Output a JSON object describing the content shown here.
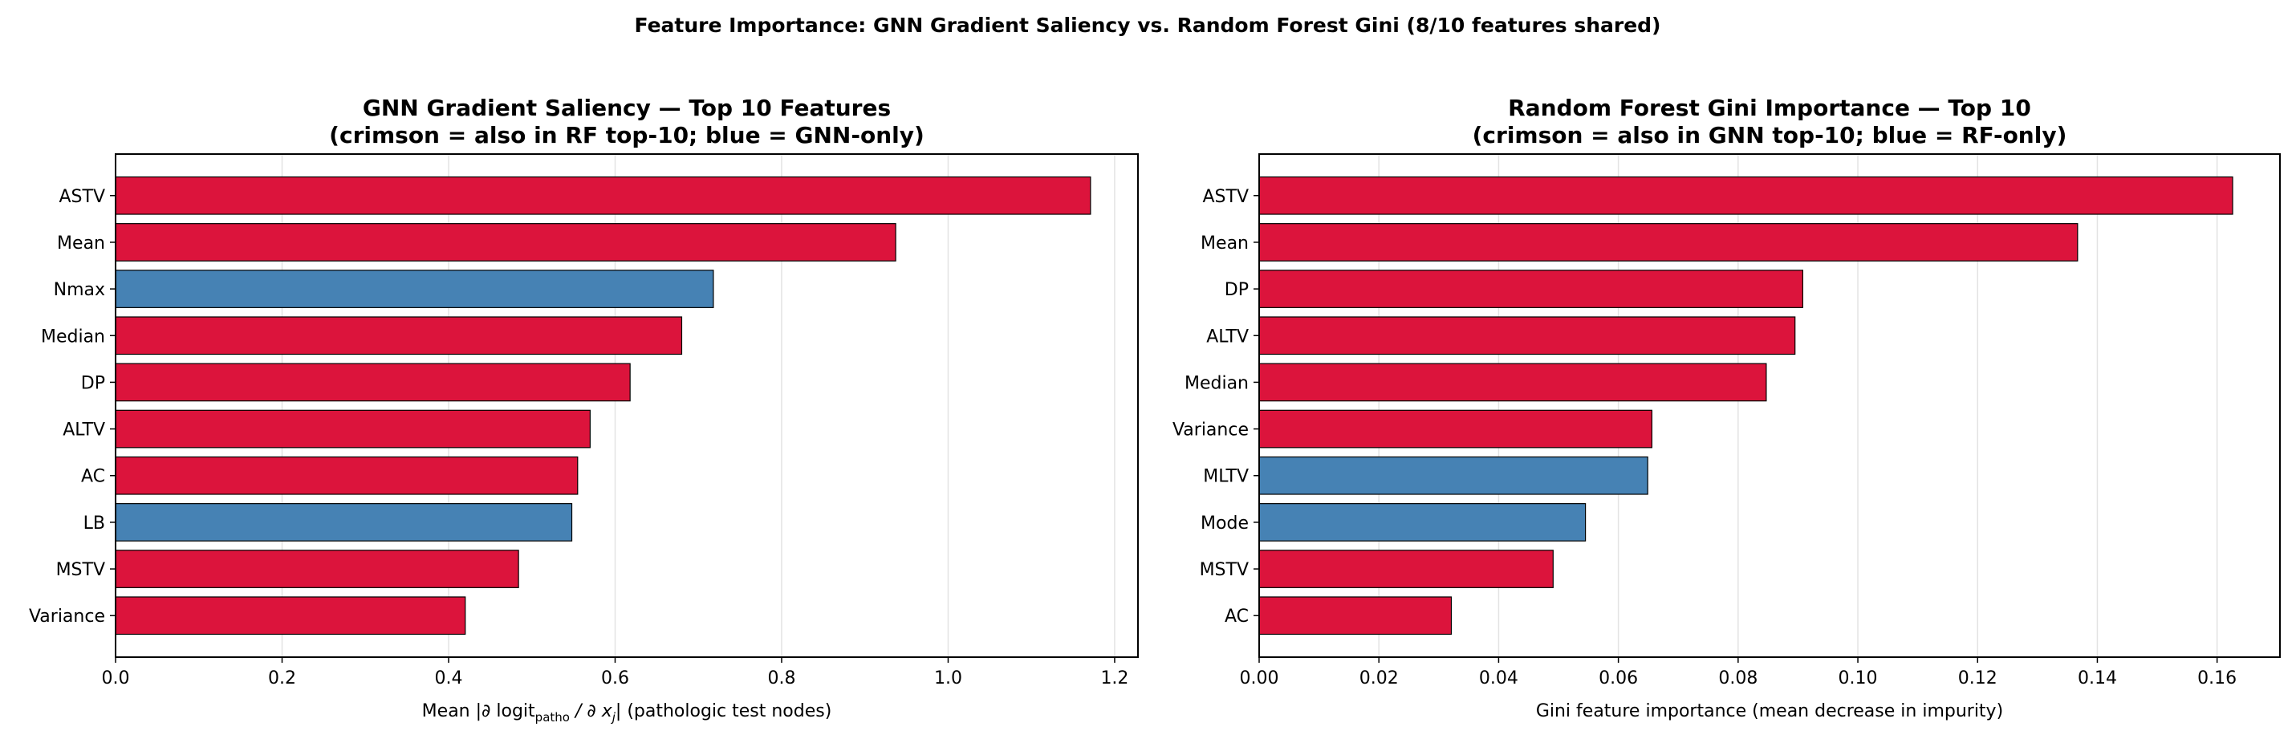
{
  "suptitle": "Feature Importance: GNN Gradient Saliency vs. Random Forest Gini  (8/10 features shared)",
  "colors": {
    "shared": "#dc143c",
    "unique": "#4682b4"
  },
  "chart_data": [
    {
      "type": "bar",
      "orientation": "horizontal",
      "title_line1": "GNN Gradient Saliency — Top 10 Features",
      "title_line2": "(crimson = also in RF top-10;  blue = GNN-only)",
      "xlabel_pre": "Mean |∂ logit",
      "xlabel_sub": "patho",
      "xlabel_mid": " / ∂ x",
      "xlabel_sub2": "j",
      "xlabel_post": "|  (pathologic test nodes)",
      "categories": [
        "ASTV",
        "Mean",
        "Nmax",
        "Median",
        "DP",
        "ALTV",
        "AC",
        "LB",
        "MSTV",
        "Variance"
      ],
      "values": [
        1.171,
        0.937,
        0.718,
        0.68,
        0.618,
        0.57,
        0.555,
        0.548,
        0.484,
        0.42
      ],
      "shared": [
        true,
        true,
        false,
        true,
        true,
        true,
        true,
        false,
        true,
        true
      ],
      "xlim": [
        0,
        1.228
      ],
      "xticks": [
        0,
        0.2,
        0.4,
        0.6,
        0.8,
        1.0,
        1.2
      ],
      "xtick_labels": [
        "0.0",
        "0.2",
        "0.4",
        "0.6",
        "0.8",
        "1.0",
        "1.2"
      ],
      "grid": "x"
    },
    {
      "type": "bar",
      "orientation": "horizontal",
      "title_line1": "Random Forest Gini Importance — Top 10",
      "title_line2": "(crimson = also in GNN top-10;  blue = RF-only)",
      "xlabel": "Gini feature importance (mean decrease in impurity)",
      "categories": [
        "ASTV",
        "Mean",
        "DP",
        "ALTV",
        "Median",
        "Variance",
        "MLTV",
        "Mode",
        "MSTV",
        "AC"
      ],
      "values": [
        0.1626,
        0.1367,
        0.0908,
        0.0895,
        0.0847,
        0.0656,
        0.0649,
        0.0545,
        0.0491,
        0.0321
      ],
      "shared": [
        true,
        true,
        true,
        true,
        true,
        true,
        false,
        false,
        true,
        true
      ],
      "xlim": [
        0,
        0.1705
      ],
      "xticks": [
        0,
        0.02,
        0.04,
        0.06,
        0.08,
        0.1,
        0.12,
        0.14,
        0.16
      ],
      "xtick_labels": [
        "0.00",
        "0.02",
        "0.04",
        "0.06",
        "0.08",
        "0.10",
        "0.12",
        "0.14",
        "0.16"
      ],
      "grid": "x"
    }
  ]
}
